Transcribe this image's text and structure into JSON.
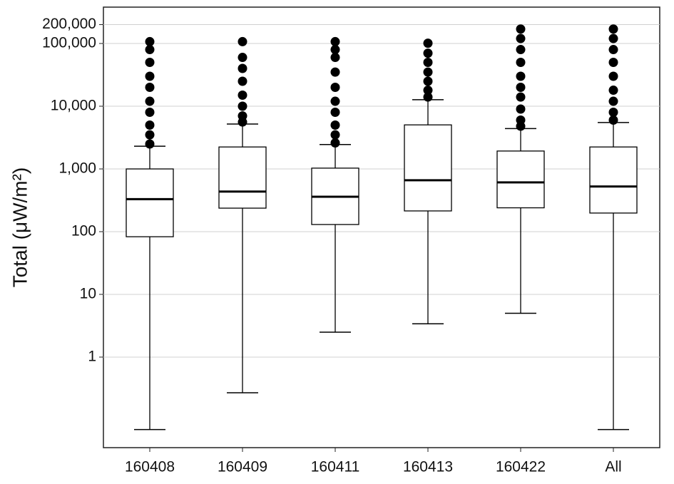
{
  "chart_data": {
    "type": "box",
    "ylabel": "Total (μW/m²)",
    "log_y": true,
    "grid": true,
    "color": "#000000",
    "categories": [
      "160408",
      "160409",
      "160411",
      "160413",
      "160422",
      "All"
    ],
    "boxes": [
      {
        "min": 0.07,
        "q1": 83,
        "median": 330,
        "q3": 1000,
        "max": 2300,
        "outliers": [
          2500,
          3500,
          5000,
          8000,
          12000,
          20000,
          30000,
          50000,
          80000,
          107000
        ]
      },
      {
        "min": 0.27,
        "q1": 237,
        "median": 435,
        "q3": 2240,
        "max": 5200,
        "outliers": [
          5600,
          7000,
          10000,
          15000,
          25000,
          40000,
          60000,
          107000
        ]
      },
      {
        "min": 2.5,
        "q1": 130,
        "median": 360,
        "q3": 1030,
        "max": 2450,
        "outliers": [
          2600,
          3500,
          5000,
          8000,
          12000,
          20000,
          35000,
          60000,
          80000,
          107000
        ]
      },
      {
        "min": 3.4,
        "q1": 214,
        "median": 660,
        "q3": 5040,
        "max": 12700,
        "outliers": [
          14000,
          18000,
          25000,
          35000,
          50000,
          70000,
          101000
        ]
      },
      {
        "min": 5,
        "q1": 240,
        "median": 610,
        "q3": 1930,
        "max": 4400,
        "outliers": [
          4800,
          6000,
          9000,
          14000,
          20000,
          30000,
          50000,
          80000,
          120000,
          170000
        ]
      },
      {
        "min": 0.07,
        "q1": 198,
        "median": 525,
        "q3": 2240,
        "max": 5500,
        "outliers": [
          6000,
          8000,
          12000,
          18000,
          30000,
          50000,
          80000,
          120000,
          170000
        ]
      }
    ],
    "ylim": [
      0.036,
      380000
    ],
    "yticks": [
      1,
      10,
      100,
      {
        "value": 1000,
        "label": "1,000"
      },
      {
        "value": 10000,
        "label": "10,000"
      },
      {
        "value": 100000,
        "label": "100,000"
      },
      {
        "value": 200000,
        "label": "200,000"
      }
    ]
  }
}
